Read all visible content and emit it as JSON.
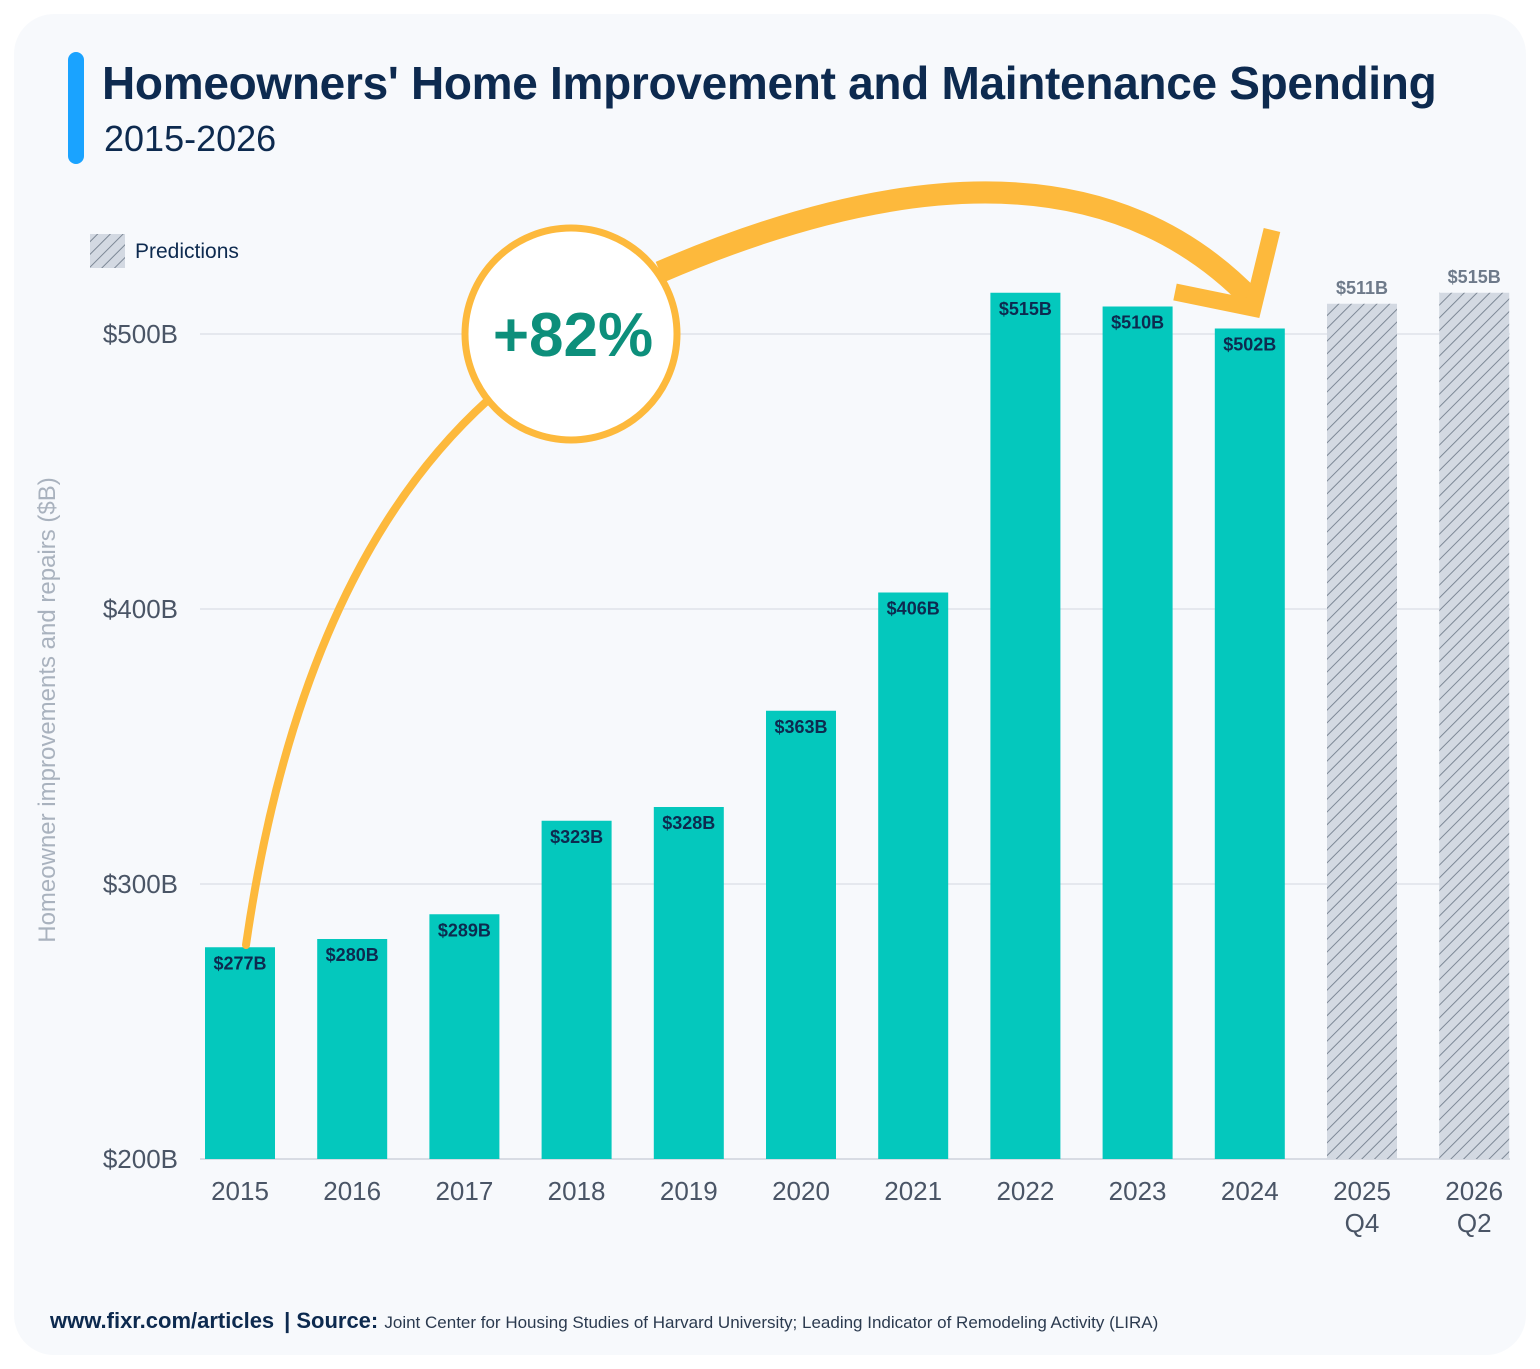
{
  "header": {
    "title": "Homeowners' Home Improvement and Maintenance Spending",
    "subtitle": "2015-2026"
  },
  "legend": {
    "predictions_label": "Predictions"
  },
  "annotation": {
    "growth_label": "+82%"
  },
  "footer": {
    "site": "www.fixr.com/articles",
    "separator": "|",
    "source_label": "Source:",
    "source_text": "Joint Center for Housing Studies of Harvard University; Leading Indicator of Remodeling Activity (LIRA)"
  },
  "colors": {
    "actual_bar": "#04c8bd",
    "prediction_bar": "#d3d9e2",
    "prediction_hatch": "#7d8896",
    "arrow": "#fdb93c",
    "growth_text": "#0d8f7b",
    "title": "#0d2a4f",
    "gridline": "#dfe3ea"
  },
  "chart_data": {
    "type": "bar",
    "ylabel": "Homeowner improvements and repairs ($B)",
    "ylim": [
      200,
      515
    ],
    "yticks": [
      {
        "value": 200,
        "label": "$200B"
      },
      {
        "value": 300,
        "label": "$300B"
      },
      {
        "value": 400,
        "label": "$400B"
      },
      {
        "value": 500,
        "label": "$500B"
      }
    ],
    "categories": [
      [
        "2015"
      ],
      [
        "2016"
      ],
      [
        "2017"
      ],
      [
        "2018"
      ],
      [
        "2019"
      ],
      [
        "2020"
      ],
      [
        "2021"
      ],
      [
        "2022"
      ],
      [
        "2023"
      ],
      [
        "2024"
      ],
      [
        "2025",
        "Q4"
      ],
      [
        "2026",
        "Q2"
      ]
    ],
    "values": [
      277,
      280,
      289,
      323,
      328,
      363,
      406,
      515,
      510,
      502,
      511,
      515
    ],
    "labels": [
      "$277B",
      "$280B",
      "$289B",
      "$323B",
      "$328B",
      "$363B",
      "$406B",
      "$515B",
      "$510B",
      "$502B",
      "$511B",
      "$515B"
    ],
    "prediction": [
      false,
      false,
      false,
      false,
      false,
      false,
      false,
      false,
      false,
      false,
      true,
      true
    ],
    "legend": [
      {
        "name": "Predictions",
        "style": "hatched"
      }
    ],
    "grid": true,
    "legend_position": "top-left"
  }
}
